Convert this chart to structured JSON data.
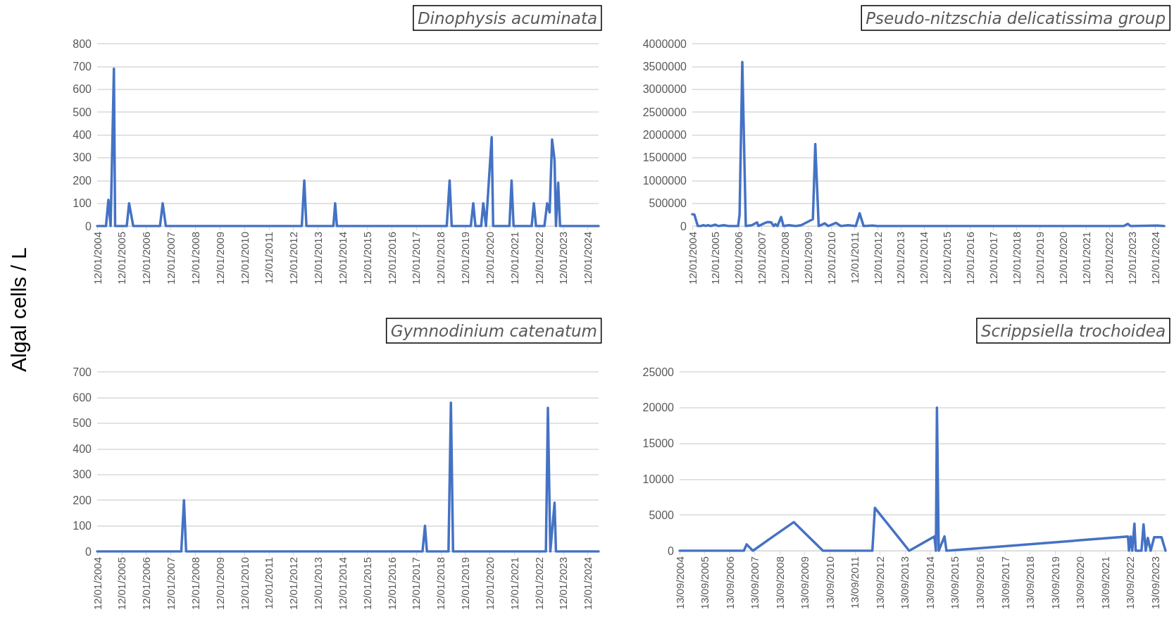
{
  "chart_data": [
    {
      "type": "line",
      "title": "Dinophysis acuminata",
      "ylabel": "Algal cells / L",
      "grid": "y",
      "marker": "none",
      "line_style": "solid",
      "xlim": [
        "2004-01-12",
        "2024-06-20"
      ],
      "xticks": [
        {
          "value": "2004-01-12",
          "label": "12/01/2004"
        },
        {
          "value": "2005-01-12",
          "label": "12/01/2005"
        },
        {
          "value": "2006-01-12",
          "label": "12/01/2006"
        },
        {
          "value": "2007-01-12",
          "label": "12/01/2007"
        },
        {
          "value": "2008-01-12",
          "label": "12/01/2008"
        },
        {
          "value": "2009-01-12",
          "label": "12/01/2009"
        },
        {
          "value": "2010-01-12",
          "label": "12/01/2010"
        },
        {
          "value": "2011-01-12",
          "label": "12/01/2011"
        },
        {
          "value": "2012-01-12",
          "label": "12/01/2012"
        },
        {
          "value": "2013-01-12",
          "label": "12/01/2013"
        },
        {
          "value": "2014-01-12",
          "label": "12/01/2014"
        },
        {
          "value": "2015-01-12",
          "label": "12/01/2015"
        },
        {
          "value": "2016-01-12",
          "label": "12/01/2016"
        },
        {
          "value": "2017-01-12",
          "label": "12/01/2017"
        },
        {
          "value": "2018-01-12",
          "label": "12/01/2018"
        },
        {
          "value": "2019-01-12",
          "label": "12/01/2019"
        },
        {
          "value": "2020-01-12",
          "label": "12/01/2020"
        },
        {
          "value": "2021-01-12",
          "label": "12/01/2021"
        },
        {
          "value": "2022-01-12",
          "label": "12/01/2022"
        },
        {
          "value": "2023-01-12",
          "label": "12/01/2023"
        },
        {
          "value": "2024-01-12",
          "label": "12/01/2024"
        }
      ],
      "ylim": [
        0,
        800
      ],
      "yticks": [
        0,
        100,
        200,
        300,
        400,
        500,
        600,
        700,
        800
      ],
      "series": [
        {
          "color": "#4472c4",
          "x": [
            "2004-01-12",
            "2004-05-22",
            "2004-06-27",
            "2004-07-30",
            "2004-09-17",
            "2004-10-05",
            "2005-03-27",
            "2005-05-01",
            "2005-07-02",
            "2006-08-04",
            "2006-09-13",
            "2006-10-30",
            "2012-05-15",
            "2012-06-21",
            "2012-07-23",
            "2013-08-28",
            "2013-09-24",
            "2013-10-20",
            "2018-04-12",
            "2018-05-25",
            "2018-06-25",
            "2019-04-05",
            "2019-05-12",
            "2019-06-13",
            "2019-09-06",
            "2019-10-08",
            "2019-11-17",
            "2020-02-10",
            "2020-03-03",
            "2020-10-31",
            "2020-12-02",
            "2021-01-01",
            "2021-09-27",
            "2021-10-30",
            "2021-12-01",
            "2022-04-05",
            "2022-05-16",
            "2022-06-22",
            "2022-07-28",
            "2022-09-03",
            "2022-09-24",
            "2022-10-27",
            "2022-11-24",
            "2024-06-20"
          ],
          "values": [
            0,
            0,
            115,
            0,
            690,
            0,
            0,
            100,
            0,
            0,
            100,
            0,
            0,
            200,
            0,
            0,
            100,
            0,
            0,
            200,
            0,
            0,
            100,
            0,
            0,
            100,
            0,
            390,
            0,
            0,
            200,
            0,
            0,
            100,
            0,
            0,
            100,
            60,
            380,
            290,
            0,
            190,
            0,
            0
          ]
        }
      ]
    },
    {
      "type": "line",
      "title": "Pseudo-nitzschia delicatissima group",
      "grid": "y",
      "marker": "none",
      "line_style": "solid",
      "xlim": [
        "2004-01-12",
        "2024-06-20"
      ],
      "xticks": [
        {
          "value": "2004-01-12",
          "label": "12/01/2004"
        },
        {
          "value": "2005-01-12",
          "label": "12/01/2005"
        },
        {
          "value": "2006-01-12",
          "label": "12/01/2006"
        },
        {
          "value": "2007-01-12",
          "label": "12/01/2007"
        },
        {
          "value": "2008-01-12",
          "label": "12/01/2008"
        },
        {
          "value": "2009-01-12",
          "label": "12/01/2009"
        },
        {
          "value": "2010-01-12",
          "label": "12/01/2010"
        },
        {
          "value": "2011-01-12",
          "label": "12/01/2011"
        },
        {
          "value": "2012-01-12",
          "label": "12/01/2012"
        },
        {
          "value": "2013-01-12",
          "label": "12/01/2013"
        },
        {
          "value": "2014-01-12",
          "label": "12/01/2014"
        },
        {
          "value": "2015-01-12",
          "label": "12/01/2015"
        },
        {
          "value": "2016-01-12",
          "label": "12/01/2016"
        },
        {
          "value": "2017-01-12",
          "label": "12/01/2017"
        },
        {
          "value": "2018-01-12",
          "label": "12/01/2018"
        },
        {
          "value": "2019-01-12",
          "label": "12/01/2019"
        },
        {
          "value": "2020-01-12",
          "label": "12/01/2020"
        },
        {
          "value": "2021-01-12",
          "label": "12/01/2021"
        },
        {
          "value": "2022-01-12",
          "label": "12/01/2022"
        },
        {
          "value": "2023-01-12",
          "label": "12/01/2023"
        },
        {
          "value": "2024-01-12",
          "label": "12/01/2024"
        }
      ],
      "ylim": [
        0,
        4000000
      ],
      "yticks": [
        0,
        500000,
        1000000,
        1500000,
        2000000,
        2500000,
        3000000,
        3500000,
        4000000
      ],
      "series": [
        {
          "color": "#4472c4",
          "x": [
            "2004-01-12",
            "2004-02-14",
            "2004-04-08",
            "2004-05-26",
            "2004-07-09",
            "2004-08-11",
            "2004-09-13",
            "2004-10-27",
            "2005-01-12",
            "2005-02-27",
            "2005-05-19",
            "2005-08-11",
            "2006-01-04",
            "2006-01-27",
            "2006-03-11",
            "2006-05-05",
            "2006-08-08",
            "2006-10-30",
            "2006-11-22",
            "2007-02-17",
            "2007-04-16",
            "2007-06-10",
            "2007-07-19",
            "2007-08-14",
            "2007-09-16",
            "2007-11-13",
            "2007-12-20",
            "2008-03-13",
            "2008-07-02",
            "2008-09-24",
            "2009-03-28",
            "2009-05-05",
            "2009-06-28",
            "2009-10-01",
            "2009-11-27",
            "2010-03-28",
            "2010-06-14",
            "2010-10-04",
            "2011-02-03",
            "2011-04-05",
            "2011-06-06",
            "2011-10-27",
            "2012-01-04",
            "2022-08-29",
            "2022-11-03",
            "2022-12-17",
            "2024-02-09",
            "2024-05-30"
          ],
          "values": [
            260000,
            250000,
            0,
            0,
            20000,
            0,
            20000,
            0,
            30000,
            0,
            20000,
            0,
            0,
            250000,
            3600000,
            0,
            20000,
            80000,
            0,
            60000,
            90000,
            80000,
            0,
            40000,
            0,
            200000,
            0,
            20000,
            0,
            20000,
            150000,
            1800000,
            0,
            60000,
            0,
            70000,
            0,
            20000,
            0,
            280000,
            0,
            10000,
            0,
            0,
            50000,
            0,
            10000,
            0
          ]
        }
      ]
    },
    {
      "type": "line",
      "title": "Gymnodinium catenatum",
      "grid": "y",
      "marker": "none",
      "line_style": "solid",
      "xlim": [
        "2004-01-12",
        "2024-06-20"
      ],
      "xticks": [
        {
          "value": "2004-01-12",
          "label": "12/01/2004"
        },
        {
          "value": "2005-01-12",
          "label": "12/01/2005"
        },
        {
          "value": "2006-01-12",
          "label": "12/01/2006"
        },
        {
          "value": "2007-01-12",
          "label": "12/01/2007"
        },
        {
          "value": "2008-01-12",
          "label": "12/01/2008"
        },
        {
          "value": "2009-01-12",
          "label": "12/01/2009"
        },
        {
          "value": "2010-01-12",
          "label": "12/01/2010"
        },
        {
          "value": "2011-01-12",
          "label": "12/01/2011"
        },
        {
          "value": "2012-01-12",
          "label": "12/01/2012"
        },
        {
          "value": "2013-01-12",
          "label": "12/01/2013"
        },
        {
          "value": "2014-01-12",
          "label": "12/01/2014"
        },
        {
          "value": "2015-01-12",
          "label": "12/01/2015"
        },
        {
          "value": "2016-01-12",
          "label": "12/01/2016"
        },
        {
          "value": "2017-01-12",
          "label": "12/01/2017"
        },
        {
          "value": "2018-01-12",
          "label": "12/01/2018"
        },
        {
          "value": "2019-01-12",
          "label": "12/01/2019"
        },
        {
          "value": "2020-01-12",
          "label": "12/01/2020"
        },
        {
          "value": "2021-01-12",
          "label": "12/01/2021"
        },
        {
          "value": "2022-01-12",
          "label": "12/01/2022"
        },
        {
          "value": "2023-01-12",
          "label": "12/01/2023"
        },
        {
          "value": "2024-01-12",
          "label": "12/01/2024"
        }
      ],
      "ylim": [
        0,
        700
      ],
      "yticks": [
        0,
        100,
        200,
        300,
        400,
        500,
        600,
        700
      ],
      "series": [
        {
          "color": "#4472c4",
          "x": [
            "2004-01-12",
            "2007-06-17",
            "2007-07-27",
            "2007-08-28",
            "2017-04-16",
            "2017-05-23",
            "2017-06-21",
            "2018-05-08",
            "2018-06-13",
            "2018-07-15",
            "2022-04-27",
            "2022-05-27",
            "2022-07-02",
            "2022-09-03",
            "2022-09-24",
            "2024-06-20"
          ],
          "values": [
            0,
            0,
            200,
            0,
            0,
            100,
            0,
            0,
            580,
            0,
            0,
            560,
            0,
            190,
            0,
            0
          ]
        }
      ]
    },
    {
      "type": "line",
      "title": "Scrippsiella trochoidea",
      "grid": "y",
      "marker": "none",
      "line_style": "solid",
      "xlim": [
        "2004-09-13",
        "2024-02-10"
      ],
      "xticks": [
        {
          "value": "2004-09-13",
          "label": "13/09/2004"
        },
        {
          "value": "2005-09-13",
          "label": "13/09/2005"
        },
        {
          "value": "2006-09-13",
          "label": "13/09/2006"
        },
        {
          "value": "2007-09-13",
          "label": "13/09/2007"
        },
        {
          "value": "2008-09-13",
          "label": "13/09/2008"
        },
        {
          "value": "2009-09-13",
          "label": "13/09/2009"
        },
        {
          "value": "2010-09-13",
          "label": "13/09/2010"
        },
        {
          "value": "2011-09-13",
          "label": "13/09/2011"
        },
        {
          "value": "2012-09-13",
          "label": "13/09/2012"
        },
        {
          "value": "2013-09-13",
          "label": "13/09/2013"
        },
        {
          "value": "2014-09-13",
          "label": "13/09/2014"
        },
        {
          "value": "2015-09-13",
          "label": "13/09/2015"
        },
        {
          "value": "2016-09-13",
          "label": "13/09/2016"
        },
        {
          "value": "2017-09-13",
          "label": "13/09/2017"
        },
        {
          "value": "2018-09-13",
          "label": "13/09/2018"
        },
        {
          "value": "2019-09-13",
          "label": "13/09/2019"
        },
        {
          "value": "2020-09-13",
          "label": "13/09/2020"
        },
        {
          "value": "2021-09-13",
          "label": "13/09/2021"
        },
        {
          "value": "2022-09-13",
          "label": "13/09/2022"
        },
        {
          "value": "2023-09-13",
          "label": "13/09/2023"
        }
      ],
      "ylim": [
        0,
        25000
      ],
      "yticks": [
        0,
        5000,
        10000,
        15000,
        20000,
        25000
      ],
      "series": [
        {
          "color": "#4472c4",
          "x": [
            "2004-09-13",
            "2007-04-08",
            "2007-05-19",
            "2007-08-18",
            "2008-06-09",
            "2009-04-05",
            "2010-06-06",
            "2012-05-26",
            "2012-07-02",
            "2013-11-14",
            "2014-11-17",
            "2014-12-09",
            "2014-12-24",
            "2015-01-19",
            "2015-04-13",
            "2015-05-12",
            "2022-08-11",
            "2022-08-25",
            "2022-09-20",
            "2022-10-12",
            "2022-11-13",
            "2022-12-02",
            "2023-02-24",
            "2023-03-26",
            "2023-04-27",
            "2023-05-27",
            "2023-07-08",
            "2023-08-28",
            "2023-12-13",
            "2024-02-10"
          ],
          "values": [
            0,
            0,
            900,
            0,
            2000,
            4000,
            0,
            0,
            6000,
            0,
            2000,
            0,
            20000,
            0,
            2000,
            0,
            2000,
            0,
            2000,
            0,
            3800,
            0,
            0,
            3700,
            0,
            1800,
            0,
            1900,
            1900,
            0
          ]
        }
      ]
    }
  ]
}
